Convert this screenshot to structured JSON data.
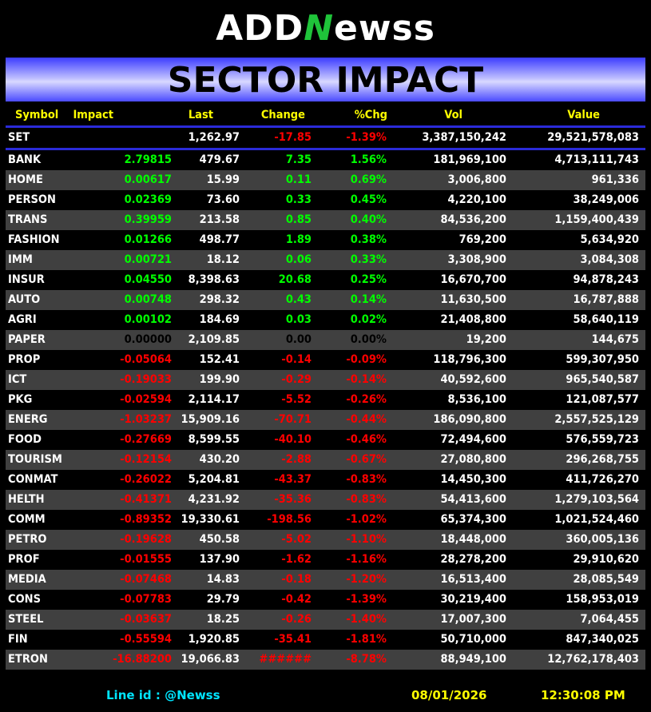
{
  "logo": {
    "text_a": "ADD",
    "text_n": "N",
    "text_b": "ewss"
  },
  "title": "SECTOR IMPACT",
  "columns": [
    "Symbol",
    "Impact",
    "Last",
    "Change",
    "%Chg",
    "Vol",
    "Value"
  ],
  "index_row": {
    "symbol": "SET",
    "impact": "",
    "last": "1,262.97",
    "change": "-17.85",
    "pct": "-1.39%",
    "vol": "3,387,150,242",
    "value": "29,521,578,083"
  },
  "colors": {
    "positive": "#00ff00",
    "negative": "#ff0000",
    "header": "#ffff00",
    "banner": "#3b3bff",
    "footer_id": "#00e5ff"
  },
  "rows": [
    {
      "symbol": "BANK",
      "impact": "2.79815",
      "last": "479.67",
      "change": "7.35",
      "pct": "1.56%",
      "vol": "181,969,100",
      "value": "4,713,111,743",
      "dir": "pos"
    },
    {
      "symbol": "HOME",
      "impact": "0.00617",
      "last": "15.99",
      "change": "0.11",
      "pct": "0.69%",
      "vol": "3,006,800",
      "value": "961,336",
      "dir": "pos"
    },
    {
      "symbol": "PERSON",
      "impact": "0.02369",
      "last": "73.60",
      "change": "0.33",
      "pct": "0.45%",
      "vol": "4,220,100",
      "value": "38,249,006",
      "dir": "pos"
    },
    {
      "symbol": "TRANS",
      "impact": "0.39959",
      "last": "213.58",
      "change": "0.85",
      "pct": "0.40%",
      "vol": "84,536,200",
      "value": "1,159,400,439",
      "dir": "pos"
    },
    {
      "symbol": "FASHION",
      "impact": "0.01266",
      "last": "498.77",
      "change": "1.89",
      "pct": "0.38%",
      "vol": "769,200",
      "value": "5,634,920",
      "dir": "pos"
    },
    {
      "symbol": "IMM",
      "impact": "0.00721",
      "last": "18.12",
      "change": "0.06",
      "pct": "0.33%",
      "vol": "3,308,900",
      "value": "3,084,308",
      "dir": "pos"
    },
    {
      "symbol": "INSUR",
      "impact": "0.04550",
      "last": "8,398.63",
      "change": "20.68",
      "pct": "0.25%",
      "vol": "16,670,700",
      "value": "94,878,243",
      "dir": "pos"
    },
    {
      "symbol": "AUTO",
      "impact": "0.00748",
      "last": "298.32",
      "change": "0.43",
      "pct": "0.14%",
      "vol": "11,630,500",
      "value": "16,787,888",
      "dir": "pos"
    },
    {
      "symbol": "AGRI",
      "impact": "0.00102",
      "last": "184.69",
      "change": "0.03",
      "pct": "0.02%",
      "vol": "21,408,800",
      "value": "58,640,119",
      "dir": "pos"
    },
    {
      "symbol": "PAPER",
      "impact": "0.00000",
      "last": "2,109.85",
      "change": "0.00",
      "pct": "0.00%",
      "vol": "19,200",
      "value": "144,675",
      "dir": "zero"
    },
    {
      "symbol": "PROP",
      "impact": "-0.05064",
      "last": "152.41",
      "change": "-0.14",
      "pct": "-0.09%",
      "vol": "118,796,300",
      "value": "599,307,950",
      "dir": "neg"
    },
    {
      "symbol": "ICT",
      "impact": "-0.19033",
      "last": "199.90",
      "change": "-0.29",
      "pct": "-0.14%",
      "vol": "40,592,600",
      "value": "965,540,587",
      "dir": "neg"
    },
    {
      "symbol": "PKG",
      "impact": "-0.02594",
      "last": "2,114.17",
      "change": "-5.52",
      "pct": "-0.26%",
      "vol": "8,536,100",
      "value": "121,087,577",
      "dir": "neg"
    },
    {
      "symbol": "ENERG",
      "impact": "-1.03237",
      "last": "15,909.16",
      "change": "-70.71",
      "pct": "-0.44%",
      "vol": "186,090,800",
      "value": "2,557,525,129",
      "dir": "neg"
    },
    {
      "symbol": "FOOD",
      "impact": "-0.27669",
      "last": "8,599.55",
      "change": "-40.10",
      "pct": "-0.46%",
      "vol": "72,494,600",
      "value": "576,559,723",
      "dir": "neg"
    },
    {
      "symbol": "TOURISM",
      "impact": "-0.12154",
      "last": "430.20",
      "change": "-2.88",
      "pct": "-0.67%",
      "vol": "27,080,800",
      "value": "296,268,755",
      "dir": "neg"
    },
    {
      "symbol": "CONMAT",
      "impact": "-0.26022",
      "last": "5,204.81",
      "change": "-43.37",
      "pct": "-0.83%",
      "vol": "14,450,300",
      "value": "411,726,270",
      "dir": "neg"
    },
    {
      "symbol": "HELTH",
      "impact": "-0.41371",
      "last": "4,231.92",
      "change": "-35.36",
      "pct": "-0.83%",
      "vol": "54,413,600",
      "value": "1,279,103,564",
      "dir": "neg"
    },
    {
      "symbol": "COMM",
      "impact": "-0.89352",
      "last": "19,330.61",
      "change": "-198.56",
      "pct": "-1.02%",
      "vol": "65,374,300",
      "value": "1,021,524,460",
      "dir": "neg"
    },
    {
      "symbol": "PETRO",
      "impact": "-0.19628",
      "last": "450.58",
      "change": "-5.02",
      "pct": "-1.10%",
      "vol": "18,448,000",
      "value": "360,005,136",
      "dir": "neg"
    },
    {
      "symbol": "PROF",
      "impact": "-0.01555",
      "last": "137.90",
      "change": "-1.62",
      "pct": "-1.16%",
      "vol": "28,278,200",
      "value": "29,910,620",
      "dir": "neg"
    },
    {
      "symbol": "MEDIA",
      "impact": "-0.07468",
      "last": "14.83",
      "change": "-0.18",
      "pct": "-1.20%",
      "vol": "16,513,400",
      "value": "28,085,549",
      "dir": "neg"
    },
    {
      "symbol": "CONS",
      "impact": "-0.07783",
      "last": "29.79",
      "change": "-0.42",
      "pct": "-1.39%",
      "vol": "30,219,400",
      "value": "158,953,019",
      "dir": "neg"
    },
    {
      "symbol": "STEEL",
      "impact": "-0.03637",
      "last": "18.25",
      "change": "-0.26",
      "pct": "-1.40%",
      "vol": "17,007,300",
      "value": "7,064,455",
      "dir": "neg"
    },
    {
      "symbol": "FIN",
      "impact": "-0.55594",
      "last": "1,920.85",
      "change": "-35.41",
      "pct": "-1.81%",
      "vol": "50,710,000",
      "value": "847,340,025",
      "dir": "neg"
    },
    {
      "symbol": "ETRON",
      "impact": "-16.88200",
      "last": "19,066.83",
      "change": "######",
      "pct": "-8.78%",
      "vol": "88,949,100",
      "value": "12,762,178,403",
      "dir": "neg"
    }
  ],
  "footer": {
    "line_id": "Line id  : @Newss",
    "date": "08/01/2026",
    "time": "12:30:08 PM"
  }
}
